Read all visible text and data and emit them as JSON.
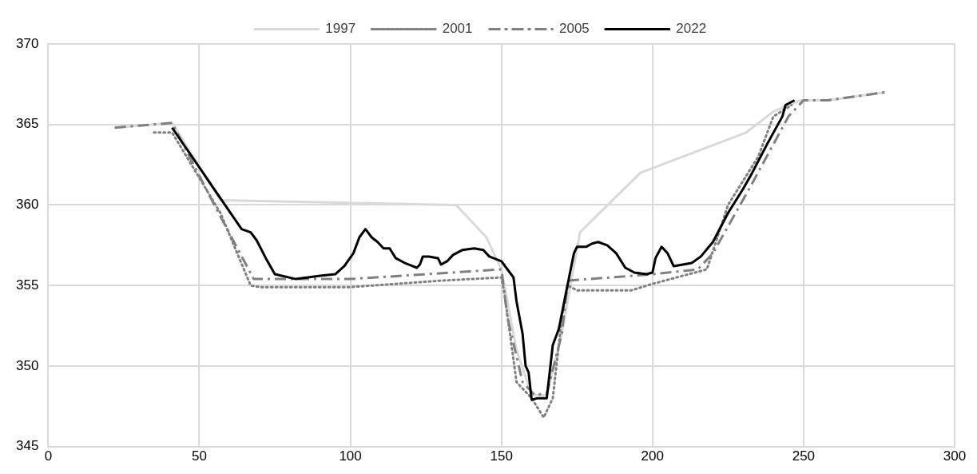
{
  "chart_data": {
    "type": "line",
    "xlim": [
      0,
      300
    ],
    "xticks": [
      0,
      50,
      100,
      150,
      200,
      250,
      300
    ],
    "ylim": [
      345,
      370
    ],
    "yticks": [
      345,
      350,
      355,
      360,
      365,
      370
    ],
    "grid": true,
    "legend": "top",
    "marker": "none",
    "series": [
      {
        "name": "1997",
        "color": "#d9d9d9",
        "line_style": "solid",
        "x": [
          22,
          41,
          57,
          135,
          145,
          150,
          155,
          160,
          165,
          170,
          176,
          196,
          231,
          240,
          249,
          258,
          277
        ],
        "values": [
          364.8,
          365.1,
          360.3,
          360.0,
          358,
          356,
          351,
          348.2,
          348.2,
          352,
          358.3,
          362,
          364.5,
          365.8,
          366.5,
          366.5,
          367
        ]
      },
      {
        "name": "2001",
        "color": "#808080",
        "line_style": "dotted",
        "x": [
          35,
          41,
          57,
          67,
          70,
          100,
          130,
          150,
          151,
          155,
          160,
          164,
          167,
          170,
          172,
          175,
          193,
          200,
          210,
          218,
          225,
          235,
          240,
          246
        ],
        "values": [
          364.5,
          364.5,
          359.5,
          355,
          354.9,
          354.9,
          355.3,
          355.5,
          354.5,
          349,
          348,
          346.8,
          348,
          353,
          355,
          354.7,
          354.7,
          355.1,
          355.6,
          356,
          360,
          363,
          365.5,
          366.2
        ]
      },
      {
        "name": "2005",
        "color": "#808080",
        "line_style": "dashed",
        "x": [
          22,
          41,
          55,
          68,
          100,
          150,
          152,
          157,
          161,
          165,
          170,
          172,
          200,
          215,
          220,
          232,
          245,
          250,
          258,
          277
        ],
        "values": [
          364.8,
          365.1,
          360,
          355.4,
          355.4,
          356,
          353,
          349,
          348.2,
          348.3,
          352,
          355.3,
          355.7,
          356,
          357,
          361,
          365.5,
          366.5,
          366.5,
          367
        ]
      },
      {
        "name": "2022",
        "color": "#000000",
        "line_style": "solid",
        "x": [
          41,
          64,
          67,
          69,
          72,
          75,
          82,
          90,
          95,
          98,
          101,
          103,
          105,
          107,
          109,
          111,
          113,
          115,
          118,
          122,
          123,
          124,
          126,
          129,
          130,
          132,
          134,
          137,
          141,
          144,
          146,
          150,
          152,
          154,
          155,
          157,
          158,
          159,
          160,
          162,
          165,
          167,
          169,
          171,
          174,
          175,
          178,
          180,
          182,
          185,
          188,
          191,
          194,
          198,
          200,
          201,
          203,
          205,
          207,
          213,
          216,
          220,
          225,
          230,
          233,
          238,
          243,
          244,
          247
        ],
        "values": [
          364.8,
          358.5,
          358.3,
          357.8,
          356.7,
          355.7,
          355.4,
          355.6,
          355.7,
          356.2,
          357,
          358,
          358.5,
          358,
          357.7,
          357.3,
          357.3,
          356.7,
          356.4,
          356.1,
          356.3,
          356.8,
          356.8,
          356.7,
          356.3,
          356.5,
          356.9,
          357.2,
          357.3,
          357.2,
          356.8,
          356.5,
          356,
          355.5,
          354,
          352,
          350,
          349.6,
          347.9,
          348,
          348,
          351.3,
          352.3,
          354.2,
          357,
          357.4,
          357.4,
          357.6,
          357.7,
          357.5,
          357,
          356.1,
          355.8,
          355.7,
          355.8,
          356.7,
          357.4,
          357,
          356.2,
          356.4,
          356.8,
          357.7,
          359.5,
          361,
          362,
          363.8,
          365.5,
          366.2,
          366.5
        ]
      }
    ]
  }
}
